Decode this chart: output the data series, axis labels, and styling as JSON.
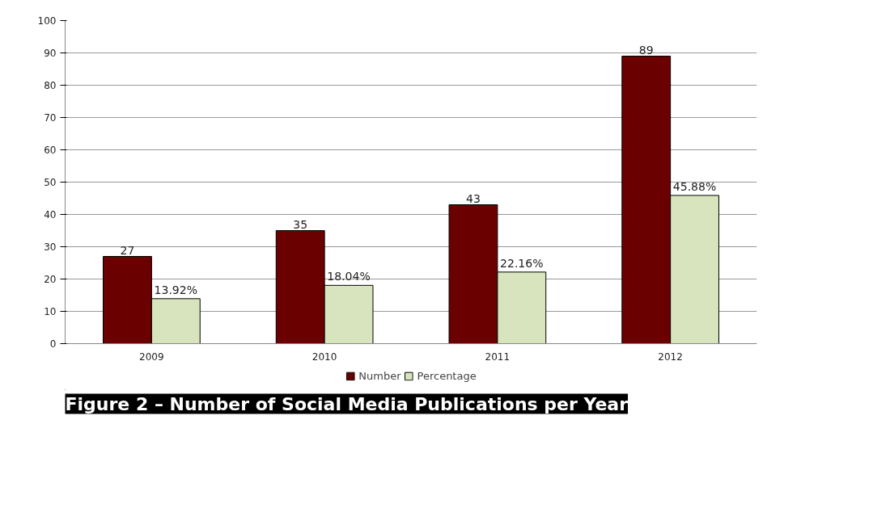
{
  "chart_data": {
    "type": "bar",
    "title": "Figure 2 – Number of Social Media Publications per Year",
    "categories": [
      "2009",
      "2010",
      "2011",
      "2012"
    ],
    "series": [
      {
        "name": "Number",
        "color": "#6b0000",
        "values": [
          27,
          35,
          43,
          89
        ],
        "value_labels": [
          "27",
          "35",
          "43",
          "89"
        ]
      },
      {
        "name": "Percentage",
        "color": "#d7e4bd",
        "values": [
          13.92,
          18.04,
          22.16,
          45.88
        ],
        "value_labels": [
          "13.92%",
          "18.04%",
          "22.16%",
          "45.88%"
        ]
      }
    ],
    "ylim": [
      0,
      100
    ],
    "yticks": [
      0,
      10,
      20,
      30,
      40,
      50,
      60,
      70,
      80,
      90,
      100
    ],
    "grid": "y",
    "legend": "bottom"
  }
}
